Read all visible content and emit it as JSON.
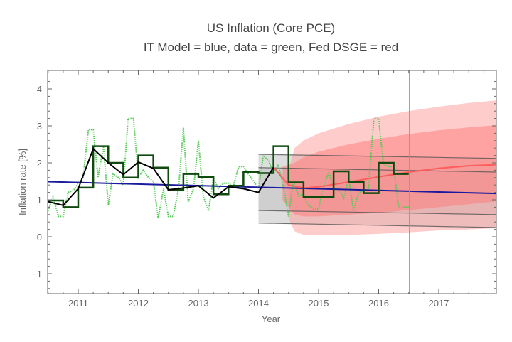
{
  "chart_data": {
    "type": "line",
    "title": "US Inflation (Core PCE)",
    "subtitle": "IT Model = blue, data = green, Fed DSGE = red",
    "xlabel": "Year",
    "ylabel": "Inflation rate [%]",
    "xlim": [
      2010.5,
      2017.96
    ],
    "ylim": [
      -1.5,
      4.5
    ],
    "xticks": [
      2011,
      2012,
      2013,
      2014,
      2015,
      2016,
      2017
    ],
    "yticks": [
      -1,
      0,
      1,
      2,
      3,
      4
    ],
    "grid": false,
    "legend": "none",
    "colors": {
      "it_model": "#1a1a9c",
      "data_monthly": "#55cc55",
      "data_quarterly": "#0f4a0f",
      "data_annual": "#000000",
      "dsge_line": "#ff5555",
      "dsge_band_outer": "#ffcccc",
      "dsge_band_inner": "#ff9f9f",
      "it_band": "#dedede",
      "it_band_lines": "#555555",
      "marker_line": "#999999"
    },
    "annotations": {
      "vertical_marker_x": 2016.51
    },
    "series": [
      {
        "name": "IT Model",
        "style": "solid",
        "x": [
          2010.5,
          2017.96
        ],
        "y": [
          1.49,
          1.17
        ]
      },
      {
        "name": "data (monthly)",
        "style": "dotted",
        "x": [
          2010.5,
          2010.58,
          2010.67,
          2010.75,
          2010.83,
          2010.92,
          2011.0,
          2011.08,
          2011.17,
          2011.25,
          2011.33,
          2011.42,
          2011.5,
          2011.58,
          2011.67,
          2011.75,
          2011.83,
          2011.92,
          2012.0,
          2012.08,
          2012.17,
          2012.25,
          2012.33,
          2012.42,
          2012.5,
          2012.58,
          2012.67,
          2012.75,
          2012.83,
          2012.92,
          2013.0,
          2013.08,
          2013.17,
          2013.25,
          2013.33,
          2013.42,
          2013.5,
          2013.58,
          2013.67,
          2013.75,
          2013.83,
          2013.92,
          2014.0,
          2014.08,
          2014.17,
          2014.25,
          2014.33,
          2014.42,
          2014.5,
          2014.58,
          2014.67,
          2014.75,
          2014.83,
          2014.92,
          2015.0,
          2015.08,
          2015.17,
          2015.25,
          2015.33,
          2015.42,
          2015.5,
          2015.58,
          2015.67,
          2015.75,
          2015.83,
          2015.92,
          2016.0,
          2016.08,
          2016.17,
          2016.25,
          2016.33,
          2016.42,
          2016.5
        ],
        "y": [
          0.7,
          1.1,
          0.55,
          0.55,
          1.2,
          1.25,
          1.45,
          1.6,
          2.9,
          2.9,
          1.6,
          2.45,
          0.85,
          1.7,
          1.6,
          1.4,
          3.2,
          3.2,
          1.6,
          1.8,
          1.6,
          1.5,
          0.5,
          1.3,
          0.55,
          0.55,
          1.3,
          2.95,
          0.95,
          1.3,
          2.6,
          1.1,
          0.7,
          1.6,
          1.3,
          1.45,
          1.45,
          1.35,
          1.9,
          1.9,
          1.7,
          1.5,
          1.3,
          2.2,
          2.05,
          1.7,
          1.95,
          1.3,
          0.55,
          1.5,
          1.1,
          1.15,
          0.85,
          0.75,
          0.75,
          1.35,
          1.75,
          1.3,
          1.3,
          1.05,
          1.6,
          0.7,
          1.2,
          1.25,
          1.3,
          3.2,
          3.2,
          1.95,
          1.9,
          1.9,
          0.8,
          0.8,
          0.8
        ]
      },
      {
        "name": "data (quarterly)",
        "style": "step",
        "x": [
          2010.5,
          2010.75,
          2011.0,
          2011.25,
          2011.5,
          2011.75,
          2012.0,
          2012.25,
          2012.5,
          2012.75,
          2013.0,
          2013.25,
          2013.5,
          2013.75,
          2014.0,
          2014.25,
          2014.5,
          2014.75,
          2015.0,
          2015.25,
          2015.5,
          2015.75,
          2016.0,
          2016.25,
          2016.5
        ],
        "y": [
          0.98,
          0.8,
          1.33,
          2.45,
          2.0,
          1.6,
          2.2,
          1.87,
          1.27,
          1.7,
          1.62,
          1.15,
          1.38,
          1.75,
          1.72,
          2.45,
          1.47,
          1.08,
          1.08,
          1.77,
          1.48,
          1.18,
          2.0,
          1.7,
          1.7
        ]
      },
      {
        "name": "data (annual)",
        "style": "solid",
        "x": [
          2010.5,
          2010.75,
          2011.0,
          2011.25,
          2011.5,
          2011.75,
          2012.0,
          2012.25,
          2012.5,
          2012.75,
          2013.0,
          2013.25,
          2013.5,
          2013.75,
          2014.0,
          2014.25
        ],
        "y": [
          0.95,
          0.85,
          1.3,
          2.38,
          2.0,
          1.68,
          2.02,
          1.85,
          1.27,
          1.32,
          1.38,
          1.05,
          1.35,
          1.3,
          1.2,
          1.88
        ]
      },
      {
        "name": "Fed DSGE",
        "style": "solid",
        "x": [
          2014.25,
          2014.5,
          2014.75,
          2015.0,
          2015.5,
          2016.0,
          2016.5,
          2017.0,
          2017.5,
          2017.96
        ],
        "y": [
          1.88,
          1.4,
          1.32,
          1.35,
          1.48,
          1.62,
          1.75,
          1.85,
          1.92,
          1.95
        ]
      }
    ],
    "bands": [
      {
        "name": "Fed DSGE outer band",
        "x": [
          2014.5,
          2014.6,
          2014.75,
          2015.0,
          2015.5,
          2016.0,
          2016.5,
          2017.0,
          2017.5,
          2017.96
        ],
        "lower": [
          0.5,
          0.15,
          0.05,
          0.05,
          0.05,
          0.08,
          0.12,
          0.17,
          0.2,
          0.23
        ],
        "upper": [
          1.8,
          2.4,
          2.6,
          2.8,
          3.05,
          3.25,
          3.4,
          3.52,
          3.62,
          3.69
        ]
      },
      {
        "name": "Fed DSGE inner band",
        "x": [
          2014.4,
          2014.6,
          2014.75,
          2015.0,
          2015.5,
          2016.0,
          2016.5,
          2017.0,
          2017.5,
          2017.96
        ],
        "lower": [
          1.0,
          0.6,
          0.55,
          0.55,
          0.6,
          0.65,
          0.72,
          0.8,
          0.88,
          0.96
        ],
        "upper": [
          1.9,
          2.0,
          2.15,
          2.3,
          2.5,
          2.65,
          2.78,
          2.88,
          2.96,
          3.02
        ]
      },
      {
        "name": "IT Model band",
        "x": [
          2014.0,
          2017.96
        ],
        "lines": [
          [
            2.23,
            2.12
          ],
          [
            1.87,
            1.75
          ],
          [
            0.71,
            0.6
          ],
          [
            0.37,
            0.25
          ]
        ]
      }
    ]
  }
}
